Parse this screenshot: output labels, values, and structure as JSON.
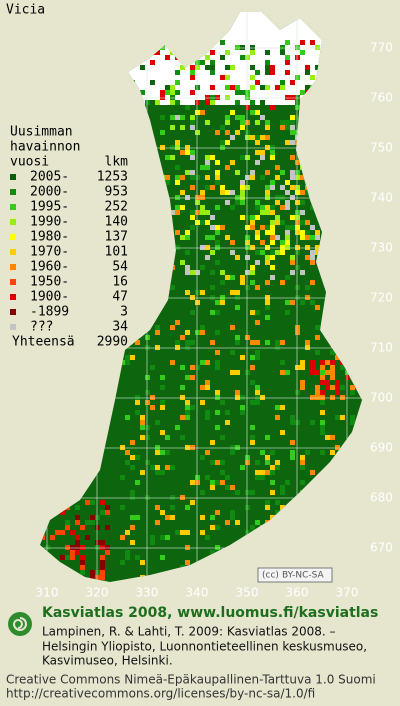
{
  "title": "Vicia",
  "legend": {
    "heading": [
      "Uusimman",
      "havainnon"
    ],
    "year_header": "vuosi",
    "count_header": "lkm",
    "rows": [
      {
        "label": "2005-",
        "count": 1253,
        "color": "#0b5e0b"
      },
      {
        "label": "2000-",
        "count": 953,
        "color": "#118a11"
      },
      {
        "label": "1995-",
        "count": 252,
        "color": "#33cc1a"
      },
      {
        "label": "1990-",
        "count": 140,
        "color": "#99ee11"
      },
      {
        "label": "1980-",
        "count": 137,
        "color": "#ffff00"
      },
      {
        "label": "1970-",
        "count": 101,
        "color": "#ffcc00"
      },
      {
        "label": "1960-",
        "count": 54,
        "color": "#ff8800"
      },
      {
        "label": "1950-",
        "count": 16,
        "color": "#ff4400"
      },
      {
        "label": "1900-",
        "count": 47,
        "color": "#dd0000"
      },
      {
        "label": "-1899",
        "count": 3,
        "color": "#880000"
      },
      {
        "label": "???",
        "count": 34,
        "color": "#c4c4c4"
      }
    ],
    "total_label": "Yhteensä",
    "total": 2990
  },
  "northing_ticks": [
    770,
    760,
    750,
    740,
    730,
    720,
    710,
    700,
    690,
    680,
    670
  ],
  "easting_ticks": [
    310,
    320,
    330,
    340,
    350,
    360,
    370
  ],
  "license_badge": "BY-NC-SA",
  "footer": {
    "site": "Kasviatlas 2008, www.luomus.fi/kasviatlas",
    "citation": [
      "Lampinen, R. & Lahti, T. 2009: Kasviatlas 2008. –",
      "Helsingin Yliopisto, Luonnontieteellinen keskusmuseo,",
      "Kasvimuseo, Helsinki."
    ],
    "license": "Creative Commons Nimeä-Epäkaupallinen-Tarttuva 1.0 Suomi",
    "license_url": "http://creativecommons.org/licenses/by-nc-sa/1.0/fi"
  }
}
